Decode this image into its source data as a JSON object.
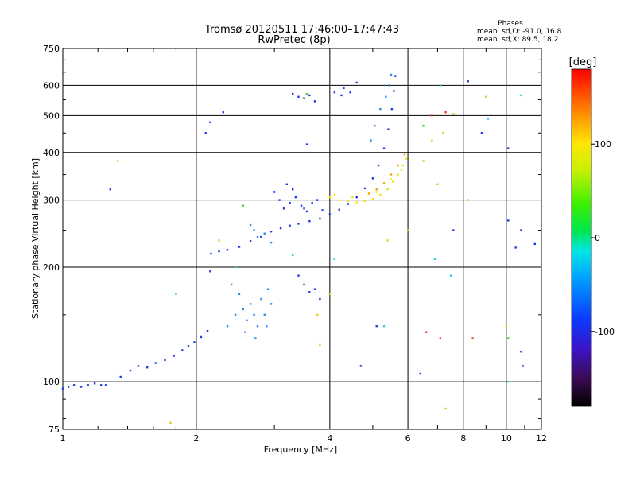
{
  "title": "Tromsø 20120511 17:46:00–17:47:43",
  "subtitle": "RwPretec (8p)",
  "phases": {
    "heading": "Phases",
    "line_o": "mean, sd,O: -91.0, 16.8",
    "line_x": "mean, sd,X:  89.5, 18.2"
  },
  "colorbar": {
    "label": "[deg]",
    "range": [
      -180,
      180
    ],
    "ticks": [
      100,
      0,
      -100
    ],
    "tick_labels": [
      "100",
      "0",
      "-100"
    ]
  },
  "colors": {
    "o_mode": "#1e3ae6",
    "o_mode_light": "#2a8cf0",
    "x_mode": "#f0e614",
    "x_mode_orange": "#f5a00a",
    "scatter_cyan": "#28d2e6",
    "scatter_green": "#3cd23c",
    "scatter_red": "#e63c28",
    "purple": "#5a1ea0"
  },
  "chart_data": {
    "type": "scatter",
    "title": "Tromsø 20120511 17:46:00–17:47:43",
    "subtitle": "RwPretec (8p)",
    "xlabel": "Frequency [MHz]",
    "ylabel": "Stationary phase Virtual Height [km]",
    "x_scale": "log",
    "y_scale": "log",
    "xlim": [
      1,
      12
    ],
    "ylim": [
      75,
      750
    ],
    "x_ticks": [
      1,
      2,
      4,
      6,
      8,
      10,
      12
    ],
    "x_tick_labels": [
      "1",
      "2",
      "4",
      "6",
      "8",
      "10",
      "12"
    ],
    "y_ticks": [
      75,
      100,
      200,
      300,
      400,
      500,
      600,
      750
    ],
    "y_tick_labels": [
      "75",
      "100",
      "200",
      "300",
      "400",
      "500",
      "600",
      "750"
    ],
    "grid": true,
    "color_encoding": "phase [deg]",
    "series": [
      {
        "mode": "O",
        "color": "#1e3ae6",
        "points": [
          [
            1.0,
            96
          ],
          [
            1.03,
            97
          ],
          [
            1.06,
            98
          ],
          [
            1.1,
            97
          ],
          [
            1.14,
            98
          ],
          [
            1.18,
            99
          ],
          [
            1.22,
            98
          ],
          [
            1.25,
            98
          ],
          [
            1.35,
            103
          ],
          [
            1.42,
            107
          ],
          [
            1.48,
            110
          ],
          [
            1.55,
            109
          ],
          [
            1.62,
            112
          ],
          [
            1.7,
            114
          ],
          [
            1.78,
            117
          ],
          [
            1.86,
            121
          ],
          [
            1.92,
            124
          ],
          [
            1.98,
            127
          ],
          [
            2.05,
            131
          ],
          [
            2.12,
            136
          ],
          [
            2.16,
            217
          ],
          [
            2.25,
            220
          ],
          [
            2.35,
            222
          ],
          [
            2.5,
            226
          ],
          [
            2.65,
            234
          ],
          [
            2.8,
            240
          ],
          [
            2.95,
            248
          ],
          [
            3.1,
            253
          ],
          [
            3.25,
            257
          ],
          [
            3.4,
            260
          ],
          [
            3.6,
            264
          ],
          [
            3.8,
            268
          ],
          [
            4.0,
            275
          ],
          [
            4.2,
            283
          ],
          [
            4.4,
            293
          ],
          [
            4.6,
            305
          ],
          [
            4.8,
            322
          ],
          [
            5.0,
            342
          ],
          [
            5.15,
            370
          ],
          [
            5.3,
            410
          ],
          [
            5.42,
            460
          ],
          [
            5.52,
            520
          ],
          [
            5.58,
            580
          ],
          [
            5.62,
            635
          ],
          [
            3.0,
            315
          ],
          [
            3.08,
            300
          ],
          [
            3.15,
            285
          ],
          [
            3.25,
            295
          ],
          [
            3.35,
            305
          ],
          [
            3.45,
            290
          ],
          [
            3.55,
            280
          ],
          [
            3.65,
            295
          ],
          [
            3.2,
            330
          ],
          [
            3.3,
            320
          ],
          [
            3.5,
            285
          ],
          [
            3.75,
            300
          ],
          [
            3.85,
            282
          ],
          [
            3.3,
            570
          ],
          [
            3.4,
            560
          ],
          [
            3.5,
            555
          ],
          [
            3.6,
            565
          ],
          [
            3.7,
            545
          ],
          [
            4.1,
            575
          ],
          [
            4.3,
            590
          ],
          [
            4.6,
            610
          ],
          [
            4.25,
            565
          ],
          [
            4.45,
            575
          ],
          [
            3.5,
            180
          ],
          [
            3.6,
            172
          ],
          [
            3.7,
            175
          ],
          [
            3.8,
            165
          ],
          [
            3.4,
            190
          ]
        ]
      },
      {
        "mode": "O-light",
        "color": "#2a8cf0",
        "points": [
          [
            2.4,
            180
          ],
          [
            2.5,
            170
          ],
          [
            2.55,
            155
          ],
          [
            2.6,
            145
          ],
          [
            2.65,
            160
          ],
          [
            2.7,
            150
          ],
          [
            2.75,
            140
          ],
          [
            2.8,
            165
          ],
          [
            2.85,
            150
          ],
          [
            2.9,
            175
          ],
          [
            2.45,
            150
          ],
          [
            2.58,
            135
          ],
          [
            2.72,
            130
          ],
          [
            2.88,
            140
          ],
          [
            2.35,
            140
          ],
          [
            2.95,
            160
          ],
          [
            2.7,
            250
          ],
          [
            2.75,
            240
          ],
          [
            2.85,
            245
          ],
          [
            2.65,
            258
          ],
          [
            2.95,
            232
          ],
          [
            4.95,
            430
          ],
          [
            5.05,
            470
          ],
          [
            5.2,
            520
          ],
          [
            5.35,
            560
          ],
          [
            5.45,
            600
          ],
          [
            5.5,
            640
          ]
        ]
      },
      {
        "mode": "X",
        "color": "#f0e614",
        "points": [
          [
            4.0,
            305
          ],
          [
            4.2,
            300
          ],
          [
            4.4,
            298
          ],
          [
            4.6,
            296
          ],
          [
            4.8,
            298
          ],
          [
            5.0,
            302
          ],
          [
            5.2,
            310
          ],
          [
            5.4,
            320
          ],
          [
            5.55,
            335
          ],
          [
            5.7,
            350
          ],
          [
            5.85,
            370
          ],
          [
            5.95,
            385
          ],
          [
            4.1,
            310
          ],
          [
            4.5,
            305
          ],
          [
            5.1,
            315
          ],
          [
            5.5,
            340
          ],
          [
            5.8,
            360
          ]
        ]
      },
      {
        "mode": "X-orange",
        "color": "#f5a00a",
        "points": [
          [
            4.9,
            312
          ],
          [
            5.1,
            320
          ],
          [
            5.3,
            332
          ],
          [
            5.5,
            350
          ],
          [
            5.7,
            370
          ],
          [
            5.9,
            395
          ]
        ]
      },
      {
        "mode": "scatter",
        "color": "#e6c828",
        "points": [
          [
            1.33,
            380
          ],
          [
            1.75,
            78
          ],
          [
            2.25,
            235
          ],
          [
            3.75,
            150
          ],
          [
            3.8,
            125
          ],
          [
            4.0,
            170
          ],
          [
            5.4,
            235
          ],
          [
            6.0,
            250
          ],
          [
            6.5,
            380
          ],
          [
            6.8,
            430
          ],
          [
            7.0,
            330
          ],
          [
            7.2,
            450
          ],
          [
            7.3,
            85
          ],
          [
            7.6,
            505
          ],
          [
            8.2,
            300
          ],
          [
            9.0,
            560
          ],
          [
            10.0,
            140
          ]
        ]
      },
      {
        "mode": "scatter-blue",
        "color": "#1e3ae6",
        "points": [
          [
            1.28,
            320
          ],
          [
            2.1,
            450
          ],
          [
            2.15,
            480
          ],
          [
            2.3,
            510
          ],
          [
            2.15,
            195
          ],
          [
            3.55,
            420
          ],
          [
            4.7,
            110
          ],
          [
            5.1,
            140
          ],
          [
            6.4,
            105
          ],
          [
            7.6,
            250
          ],
          [
            8.2,
            615
          ],
          [
            8.8,
            450
          ],
          [
            10.1,
            410
          ],
          [
            10.1,
            265
          ],
          [
            10.5,
            225
          ],
          [
            10.8,
            250
          ],
          [
            10.8,
            120
          ],
          [
            10.9,
            110
          ],
          [
            11.6,
            230
          ]
        ]
      },
      {
        "mode": "scatter-cyan",
        "color": "#28d2e6",
        "points": [
          [
            1.8,
            170
          ],
          [
            2.45,
            200
          ],
          [
            3.3,
            215
          ],
          [
            4.1,
            210
          ],
          [
            5.3,
            140
          ],
          [
            6.9,
            210
          ],
          [
            7.5,
            190
          ],
          [
            9.1,
            490
          ],
          [
            10.1,
            100
          ],
          [
            10.8,
            565
          ],
          [
            7.1,
            600
          ]
        ]
      },
      {
        "mode": "scatter-red",
        "color": "#e63c28",
        "points": [
          [
            6.6,
            135
          ],
          [
            7.1,
            130
          ],
          [
            8.4,
            130
          ],
          [
            6.8,
            500
          ],
          [
            7.3,
            510
          ]
        ]
      },
      {
        "mode": "scatter-green",
        "color": "#3cd23c",
        "points": [
          [
            2.55,
            290
          ],
          [
            3.55,
            570
          ],
          [
            10.1,
            130
          ],
          [
            6.5,
            470
          ]
        ]
      }
    ]
  }
}
